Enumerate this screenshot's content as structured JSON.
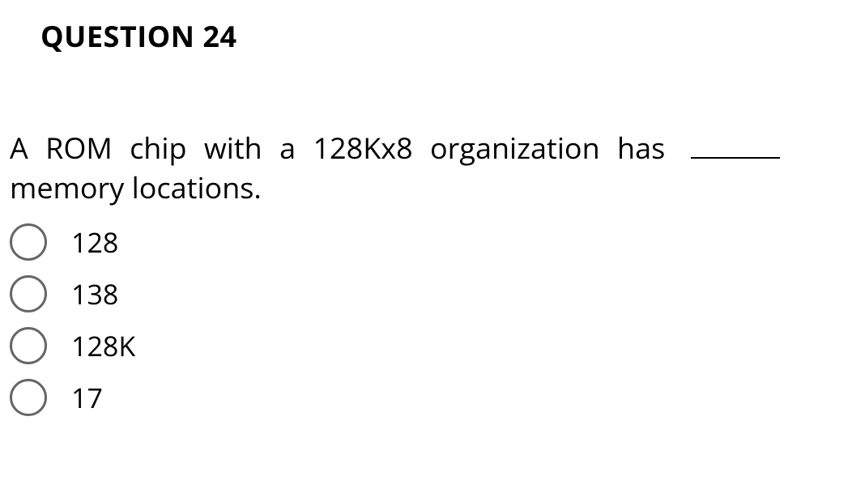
{
  "question": {
    "header": "QUESTION 24",
    "text_line1": "A ROM chip with a 128Kx8 organization has",
    "text_line2": "memory locations.",
    "options": [
      {
        "label": "128"
      },
      {
        "label": "138"
      },
      {
        "label": "128K"
      },
      {
        "label": "17"
      }
    ]
  },
  "styling": {
    "background_color": "#ffffff",
    "text_color": "#000000",
    "radio_border_color": "#666666",
    "header_fontsize": 36,
    "header_fontweight": 700,
    "body_fontsize": 36,
    "option_fontsize": 34,
    "radio_diameter": 46,
    "radio_border_width": 3
  }
}
